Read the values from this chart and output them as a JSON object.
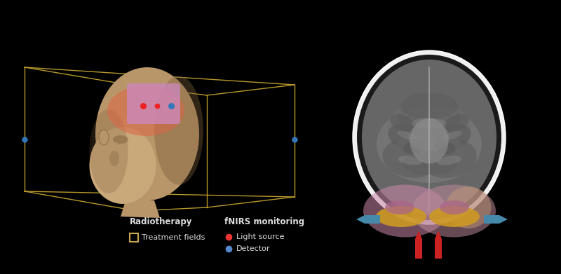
{
  "background_color": "#000000",
  "legend_radiotherapy_title": "Radiotherapy",
  "legend_fnirs_title": "fNIRS monitoring",
  "legend_treatment_label": "Treatment fields",
  "legend_light_source_label": "Light source",
  "legend_detector_label": "Detector",
  "legend_treatment_color": "#c8a84b",
  "legend_light_source_color": "#ee3333",
  "legend_detector_color": "#5588cc",
  "text_color": "#dddddd",
  "head_skin_color": "#b8966a",
  "head_skin_light": "#c9a87a",
  "head_shadow_color": "#7a5c3a",
  "treatment_patch_color": "#cc88bb",
  "treatment_patch_alpha": 0.8,
  "radiation_glow_color": "#dd6644",
  "radiation_glow_alpha": 0.55,
  "box_color": "#ccaa33",
  "fnirs_dot_red": "#ee2222",
  "fnirs_dot_blue": "#3377bb",
  "skull_outer_color": "#d8d8d8",
  "skull_ring_color": "#f0f0f0",
  "brain_dark_color": "#555555",
  "brain_mid_color": "#707070",
  "brain_light_color": "#909090",
  "fnirs_probe_pink": "#cc88aa",
  "fnirs_probe_pink2": "#bb7799",
  "fnirs_probe_yellow": "#cc9922",
  "fnirs_arrow_red": "#cc2222",
  "fnirs_arrow_blue": "#4488aa"
}
